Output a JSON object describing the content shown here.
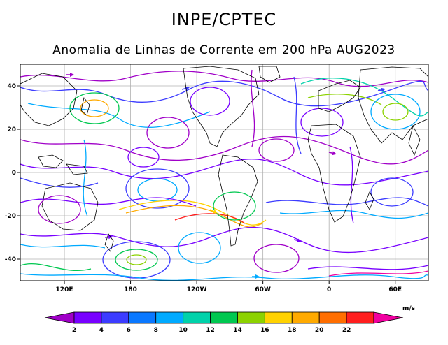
{
  "header": {
    "org": "INPE/CPTEC",
    "title": "Anomalia de Linhas de Corrente em 200 hPa AUG2023"
  },
  "map": {
    "lat_ticks": [
      {
        "label": "40",
        "value": 40
      },
      {
        "label": "20",
        "value": 20
      },
      {
        "label": "0",
        "value": 0
      },
      {
        "label": "-20",
        "value": -20
      },
      {
        "label": "-40",
        "value": -40
      }
    ],
    "lon_ticks": [
      {
        "label": "120E",
        "value": 120
      },
      {
        "label": "180",
        "value": 180
      },
      {
        "label": "120W",
        "value": 240
      },
      {
        "label": "60W",
        "value": 300
      },
      {
        "label": "0",
        "value": 360
      },
      {
        "label": "60E",
        "value": 420
      }
    ],
    "lat_range": [
      -50,
      50
    ],
    "lon_range": [
      80,
      450
    ],
    "grid": true
  },
  "colorbar": {
    "unit": "m/s",
    "labels": [
      "2",
      "4",
      "6",
      "8",
      "10",
      "12",
      "14",
      "16",
      "18",
      "20",
      "22"
    ],
    "colors": [
      "#a000c8",
      "#7800ff",
      "#3c3cff",
      "#0a78ff",
      "#00aaff",
      "#00d2aa",
      "#00c850",
      "#8cd200",
      "#ffd200",
      "#ffaa00",
      "#ff6e00",
      "#ff1e1e",
      "#f000a0"
    ]
  },
  "colors": {
    "land_outline": "#000000",
    "grid": "#b0b0b0"
  }
}
